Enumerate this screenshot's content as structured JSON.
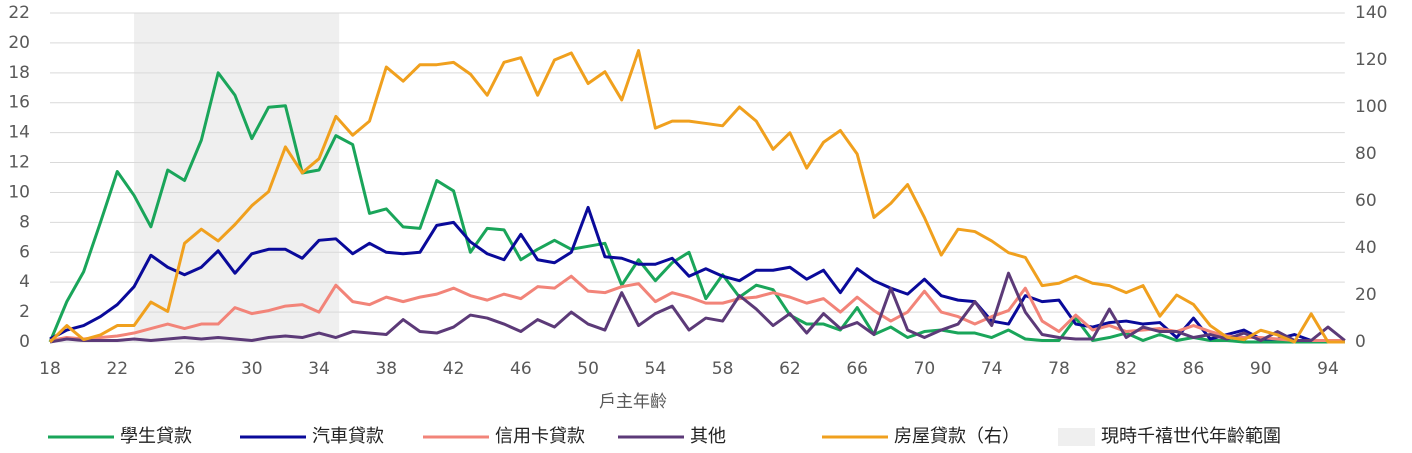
{
  "chart_data": {
    "type": "line",
    "x": [
      18,
      19,
      20,
      21,
      22,
      23,
      24,
      25,
      26,
      27,
      28,
      29,
      30,
      31,
      32,
      33,
      34,
      35,
      36,
      37,
      38,
      39,
      40,
      41,
      42,
      43,
      44,
      45,
      46,
      47,
      48,
      49,
      50,
      51,
      52,
      53,
      54,
      55,
      56,
      57,
      58,
      59,
      60,
      61,
      62,
      63,
      64,
      65,
      66,
      67,
      68,
      69,
      70,
      71,
      72,
      73,
      74,
      75,
      76,
      77,
      78,
      79,
      80,
      81,
      82,
      83,
      84,
      85,
      86,
      87,
      88,
      89,
      90,
      91,
      92,
      93,
      94,
      95
    ],
    "xlabel": "戶主年齡",
    "xlim": [
      18,
      95
    ],
    "xticks": [
      18,
      22,
      26,
      30,
      34,
      38,
      42,
      46,
      50,
      54,
      58,
      62,
      66,
      70,
      74,
      78,
      82,
      86,
      90,
      94
    ],
    "ylim": [
      0,
      22
    ],
    "yticks": [
      0,
      2,
      4,
      6,
      8,
      10,
      12,
      14,
      16,
      18,
      20,
      22
    ],
    "y2lim": [
      0,
      140
    ],
    "y2ticks": [
      0,
      20,
      40,
      60,
      80,
      100,
      120,
      140
    ],
    "grid": true,
    "band": {
      "label": "現時千禧世代年齡範圍",
      "range": [
        23,
        35.2
      ],
      "color": "#efefef"
    },
    "series": [
      {
        "name": "學生貸款",
        "color": "#1aa55a",
        "values": [
          0,
          2.7,
          4.7,
          8,
          11.4,
          9.8,
          7.7,
          11.5,
          10.8,
          13.5,
          18,
          16.5,
          13.6,
          15.7,
          15.8,
          11.3,
          11.5,
          13.8,
          13.2,
          8.6,
          8.9,
          7.7,
          7.6,
          10.8,
          10.1,
          6,
          7.6,
          7.5,
          5.5,
          6.2,
          6.8,
          6.2,
          6.4,
          6.6,
          3.8,
          5.5,
          4.1,
          5.3,
          6,
          2.9,
          4.5,
          3,
          3.8,
          3.5,
          1.8,
          1.2,
          1.2,
          0.8,
          2.3,
          0.5,
          1,
          0.3,
          0.7,
          0.8,
          0.6,
          0.6,
          0.3,
          0.8,
          0.2,
          0.1,
          0.1,
          1.6,
          0.1,
          0.3,
          0.6,
          0.1,
          0.5,
          0.1,
          0.3,
          0.1,
          0.1,
          0,
          0,
          0,
          0,
          0,
          0,
          0
        ]
      },
      {
        "name": "汽車貸款",
        "color": "#0a0a9a",
        "values": [
          0.2,
          0.8,
          1.1,
          1.7,
          2.5,
          3.7,
          5.8,
          5,
          4.5,
          5,
          6.1,
          4.6,
          5.9,
          6.2,
          6.2,
          5.6,
          6.8,
          6.9,
          5.9,
          6.6,
          6,
          5.9,
          6,
          7.8,
          8,
          6.7,
          5.9,
          5.5,
          7.2,
          5.5,
          5.3,
          6,
          9,
          5.7,
          5.6,
          5.2,
          5.2,
          5.6,
          4.4,
          4.9,
          4.4,
          4.1,
          4.8,
          4.8,
          5,
          4.2,
          4.8,
          3.3,
          4.9,
          4.1,
          3.6,
          3.2,
          4.2,
          3.1,
          2.8,
          2.7,
          1.4,
          1.2,
          3.1,
          2.7,
          2.8,
          1.2,
          1,
          1.3,
          1.4,
          1.2,
          1.3,
          0.3,
          1.6,
          0.2,
          0.5,
          0.8,
          0.2,
          0.2,
          0.5,
          0.1,
          0.1,
          0.1
        ]
      },
      {
        "name": "信用卡貸款",
        "color": "#f28479",
        "values": [
          0.1,
          0.3,
          0.2,
          0.3,
          0.4,
          0.6,
          0.9,
          1.2,
          0.9,
          1.2,
          1.2,
          2.3,
          1.9,
          2.1,
          2.4,
          2.5,
          2,
          3.8,
          2.7,
          2.5,
          3,
          2.7,
          3,
          3.2,
          3.6,
          3.1,
          2.8,
          3.2,
          2.9,
          3.7,
          3.6,
          4.4,
          3.4,
          3.3,
          3.7,
          3.9,
          2.7,
          3.3,
          3,
          2.6,
          2.6,
          2.9,
          3,
          3.3,
          3,
          2.6,
          2.9,
          2,
          3,
          2.1,
          1.4,
          2,
          3.4,
          2,
          1.7,
          1.2,
          1.7,
          2.1,
          3.6,
          1.4,
          0.7,
          1.8,
          0.8,
          1.1,
          0.7,
          0.8,
          0.9,
          0.7,
          1.1,
          0.7,
          0.4,
          0.3,
          0.3,
          0.2,
          0.1,
          0.1,
          0.1,
          0.1
        ]
      },
      {
        "name": "其他",
        "color": "#5c3a78",
        "values": [
          0,
          0.2,
          0.1,
          0.1,
          0.1,
          0.2,
          0.1,
          0.2,
          0.3,
          0.2,
          0.3,
          0.2,
          0.1,
          0.3,
          0.4,
          0.3,
          0.6,
          0.3,
          0.7,
          0.6,
          0.5,
          1.5,
          0.7,
          0.6,
          1,
          1.8,
          1.6,
          1.2,
          0.7,
          1.5,
          1,
          2,
          1.2,
          0.8,
          3.3,
          1.1,
          1.9,
          2.4,
          0.8,
          1.6,
          1.4,
          3.1,
          2.2,
          1.1,
          1.9,
          0.6,
          1.9,
          0.9,
          1.3,
          0.5,
          3.6,
          0.8,
          0.3,
          0.8,
          1.2,
          2.7,
          1.1,
          4.6,
          2,
          0.5,
          0.3,
          0.2,
          0.2,
          2.2,
          0.3,
          1,
          0.7,
          0.7,
          0.3,
          0.5,
          0.2,
          0.6,
          0.1,
          0.7,
          0.1,
          0.1,
          1,
          0.1
        ]
      },
      {
        "name": "房屋貸款（右）",
        "color": "#f0a01e",
        "axis": "y2",
        "values": [
          0,
          7,
          1,
          3,
          7,
          7,
          17,
          13,
          42,
          48,
          43,
          50,
          58,
          64,
          83,
          72,
          78,
          96,
          88,
          94,
          117,
          111,
          118,
          118,
          119,
          114,
          105,
          119,
          121,
          105,
          120,
          123,
          110,
          115,
          103,
          124,
          91,
          94,
          94,
          93,
          92,
          100,
          94,
          82,
          89,
          74,
          85,
          90,
          80,
          53,
          59,
          67,
          53,
          37,
          48,
          47,
          43,
          38,
          36,
          24,
          25,
          28,
          25,
          24,
          21,
          24,
          11,
          20,
          16,
          7,
          2,
          1,
          5,
          3,
          0,
          12,
          0,
          0
        ]
      }
    ]
  }
}
